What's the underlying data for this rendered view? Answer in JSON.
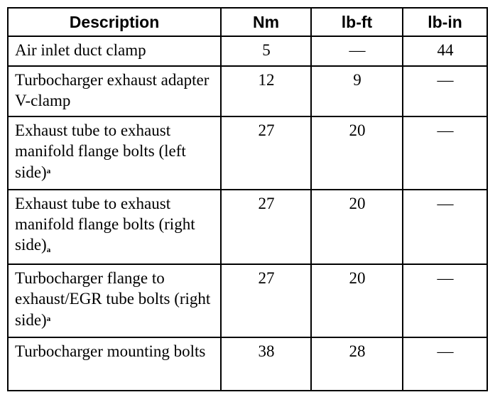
{
  "table": {
    "headers": [
      "Description",
      "Nm",
      "lb-ft",
      "lb-in"
    ],
    "rows": [
      {
        "description": "Air inlet duct clamp",
        "footnote": "",
        "footnote_pos": "",
        "nm": "5",
        "lbft": "—",
        "lbin": "44"
      },
      {
        "description": "Turbocharger exhaust adapter V-clamp",
        "footnote": "",
        "footnote_pos": "",
        "nm": "12",
        "lbft": "9",
        "lbin": "—"
      },
      {
        "description": "Exhaust tube to exhaust manifold flange bolts (left side)",
        "footnote": "a",
        "footnote_pos": "sup",
        "nm": "27",
        "lbft": "20",
        "lbin": "—"
      },
      {
        "description": "Exhaust tube to exhaust manifold flange bolts (right side)",
        "footnote": "a",
        "footnote_pos": "sub",
        "nm": "27",
        "lbft": "20",
        "lbin": "—"
      },
      {
        "description": "Turbocharger flange to exhaust/EGR tube bolts (right side)",
        "footnote": "a",
        "footnote_pos": "sup",
        "nm": "27",
        "lbft": "20",
        "lbin": "—"
      },
      {
        "description": "Turbocharger mounting bolts",
        "footnote": "",
        "footnote_pos": "",
        "nm": "38",
        "lbft": "28",
        "lbin": "—"
      }
    ]
  }
}
